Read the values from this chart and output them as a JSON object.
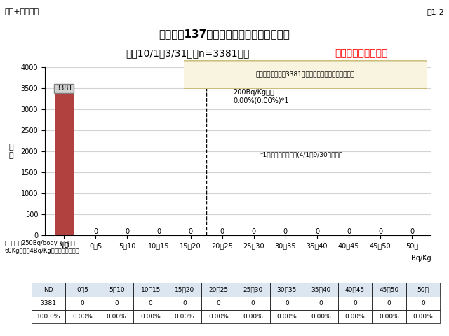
{
  "title_line1": "セシウム137の体内放射能量別の被験者数",
  "title_line2_plain": "通期10/1〜3/31　（n=3381）　",
  "title_line2_red": "子供（中学生以下）",
  "top_left": "一般+学校検診",
  "top_right": "図1-2",
  "ylabel": "人\n数",
  "xlabel": "Bq/Kg",
  "categories": [
    "ND",
    "0〜5",
    "5〜10",
    "10〜15",
    "15〜20",
    "20〜25",
    "25〜30",
    "30〜35",
    "35〜40",
    "40〜45",
    "45〜50",
    "50〜"
  ],
  "values": [
    3381,
    0,
    0,
    0,
    0,
    0,
    0,
    0,
    0,
    0,
    0,
    0
  ],
  "bar_color": "#b0413e",
  "bar_label_value": "3381",
  "ylim": [
    0,
    4000
  ],
  "yticks": [
    0,
    500,
    1000,
    1500,
    2000,
    2500,
    3000,
    3500,
    4000
  ],
  "dashed_line_x": 4.5,
  "arrow_text": "200Bq/Kg以上\n0.00%(0.00%)*1",
  "footnote1": "*1（）は、前期調査(4/1〜9/30）の割合",
  "footnote2": "検出限界は250Bq/bodyです。体重\n60Kgの方で4Bq/Kg程度になります。",
  "callout_text": "今回検査を受けた3381名全員が検出限界以下でした。",
  "table_rows": [
    [
      "ND",
      "0〜5",
      "5〜10",
      "10〜15",
      "15〜20",
      "20〜25",
      "25〜30",
      "30〜35",
      "35〜40",
      "40〜45",
      "45〜50",
      "50〜"
    ],
    [
      "3381",
      "0",
      "0",
      "0",
      "0",
      "0",
      "0",
      "0",
      "0",
      "0",
      "0",
      "0"
    ],
    [
      "100.0%",
      "0.00%",
      "0.00%",
      "0.00%",
      "0.00%",
      "0.00%",
      "0.00%",
      "0.00%",
      "0.00%",
      "0.00%",
      "0.00%",
      "0.00%"
    ]
  ]
}
